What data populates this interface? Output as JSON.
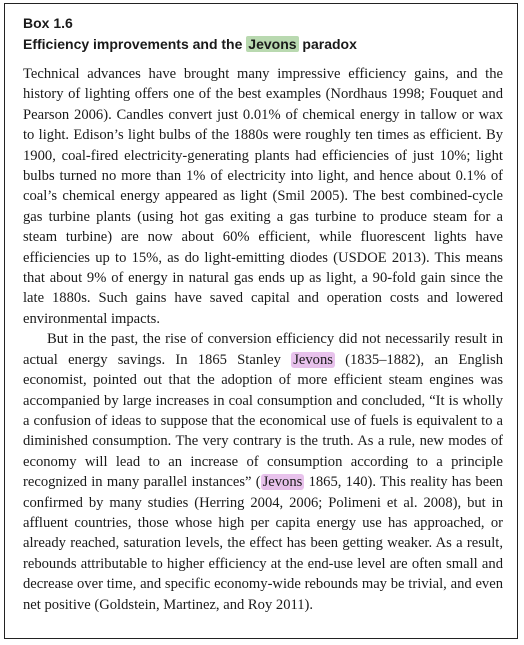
{
  "box": {
    "label": "Box 1.6",
    "title_before": "Efficiency improvements and the ",
    "title_highlight": "Jevons",
    "title_after": " paradox"
  },
  "paragraph1": {
    "text": "Technical advances have brought many impressive efficiency gains, and the history of lighting offers one of the best examples (Nordhaus 1998; Fouquet and Pearson 2006). Candles convert just 0.01% of chemical energy in tallow or wax to light. Edison’s light bulbs of the 1880s were roughly ten times as efficient. By 1900, coal-fired electricity-generating plants had efficiencies of just 10%; light bulbs turned no more than 1% of electricity into light, and hence about 0.1% of coal’s chemical energy appeared as light (Smil 2005). The best combined-cycle gas turbine plants (using hot gas exiting a gas turbine to produce steam for a steam turbine) are now about 60% efficient, while fluorescent lights have efficiencies up to 15%, as do light-emitting diodes (USDOE 2013). This means that about 9% of energy in natural gas ends up as light, a 90-fold gain since the late 1880s. Such gains have saved capital and operation costs and lowered environmental impacts."
  },
  "paragraph2": {
    "part1": "But in the past, the rise of conversion efficiency did not necessarily result in actual energy savings. In 1865 Stanley ",
    "highlight1": "Jevons",
    "part2": " (1835–1882), an English economist, pointed out that the adoption of more efficient steam engines was accompanied by large increases in coal consumption and concluded, “It is wholly a confusion of ideas to suppose that the economical use of fuels is equivalent to a diminished consumption. The very contrary is the truth. As a rule, new modes of economy will lead to an increase of consumption according to a principle recognized in many parallel instances” (",
    "highlight2": "Jevons",
    "part3": " 1865, 140). This reality has been confirmed by many studies (Herring 2004, 2006; Polimeni et al. 2008), but in affluent countries, those whose high per capita energy use has approached, or already reached, saturation levels, the effect has been getting weaker. As a result, rebounds attributable to higher efficiency at the end-use level are often small and decrease over time, and specific economy-wide rebounds may be trivial, and even net positive (Goldstein, Martinez, and Roy 2011)."
  },
  "colors": {
    "highlight_green": "#b9d9b0",
    "highlight_pink": "#e8c2ec",
    "border": "#222222"
  }
}
